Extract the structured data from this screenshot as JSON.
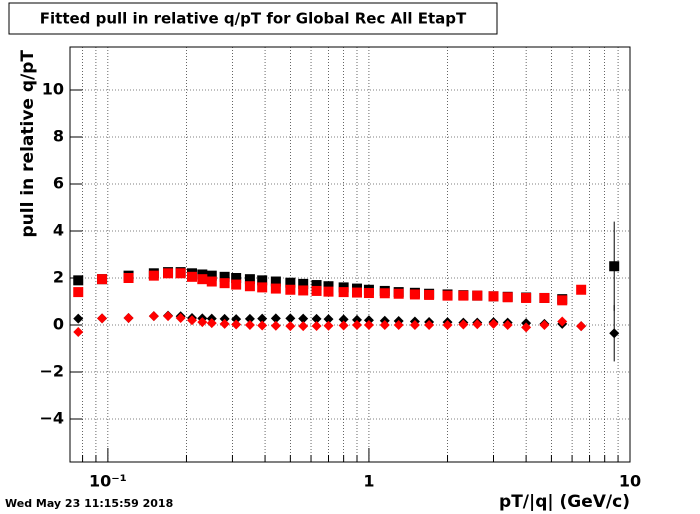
{
  "chart_data": {
    "type": "scatter",
    "title": "Fitted pull in relative q/pT for Global Rec All EtapT",
    "x_label": "pT/|q| (GeV/c)",
    "y_label": "pull in relative q/pT",
    "timestamp": "Wed May 23 11:15:59 2018",
    "xscale": "log",
    "grid": true,
    "xlim": [
      0.0716,
      10
    ],
    "ylim": [
      -5.83,
      11.83
    ],
    "xticks": [
      {
        "value": 0.1,
        "label": "10⁻¹"
      },
      1,
      10
    ],
    "xminorticks": [
      0.08,
      0.09,
      0.2,
      0.3,
      0.4,
      0.5,
      0.6,
      0.7,
      0.8,
      0.9,
      2,
      3,
      4,
      5,
      6,
      7,
      8,
      9
    ],
    "yticks": [
      {
        "value": -4,
        "label": "−4"
      },
      {
        "value": -2,
        "label": "−2"
      },
      0,
      2,
      4,
      6,
      8,
      10
    ],
    "x": [
      0.077,
      0.095,
      0.12,
      0.15,
      0.17,
      0.19,
      0.21,
      0.23,
      0.25,
      0.28,
      0.31,
      0.35,
      0.39,
      0.44,
      0.5,
      0.56,
      0.63,
      0.7,
      0.8,
      0.9,
      1.0,
      1.15,
      1.3,
      1.5,
      1.7,
      2.0,
      2.3,
      2.6,
      3.0,
      3.4,
      4.0,
      4.7,
      5.5,
      6.5,
      8.7
    ],
    "series": [
      {
        "color": "#000000",
        "marker": "square",
        "values": [
          1.9,
          1.95,
          2.1,
          2.2,
          2.25,
          2.25,
          2.2,
          2.15,
          2.1,
          2.05,
          2.0,
          1.95,
          1.9,
          1.85,
          1.8,
          1.75,
          1.7,
          1.65,
          1.6,
          1.55,
          1.5,
          1.45,
          1.4,
          1.37,
          1.33,
          1.3,
          1.27,
          1.25,
          1.22,
          1.2,
          1.17,
          1.15,
          1.1,
          null,
          2.5
        ],
        "errors": [
          null,
          null,
          null,
          null,
          null,
          null,
          null,
          null,
          null,
          null,
          null,
          null,
          null,
          null,
          null,
          null,
          null,
          null,
          null,
          null,
          null,
          null,
          null,
          null,
          null,
          null,
          null,
          null,
          null,
          null,
          null,
          null,
          null,
          null,
          1.9
        ]
      },
      {
        "color": "#ff0000",
        "marker": "square",
        "values": [
          1.4,
          1.95,
          2.0,
          2.1,
          2.2,
          2.2,
          2.05,
          1.95,
          1.85,
          1.78,
          1.72,
          1.65,
          1.6,
          1.55,
          1.5,
          1.47,
          1.45,
          1.42,
          1.4,
          1.38,
          1.36,
          1.35,
          1.33,
          1.3,
          1.28,
          1.25,
          1.25,
          1.25,
          1.22,
          1.18,
          1.15,
          1.15,
          1.05,
          1.5,
          null
        ]
      },
      {
        "color": "#000000",
        "marker": "diamond",
        "values": [
          0.27,
          0.28,
          0.3,
          0.38,
          0.4,
          0.37,
          0.3,
          0.28,
          0.27,
          0.26,
          0.25,
          0.26,
          0.27,
          0.28,
          0.28,
          0.27,
          0.26,
          0.25,
          0.24,
          0.22,
          0.2,
          0.18,
          0.17,
          0.15,
          0.13,
          0.12,
          0.1,
          0.1,
          0.12,
          0.1,
          0.08,
          0.05,
          0.05,
          -0.05,
          -0.35
        ],
        "errors": [
          null,
          null,
          null,
          null,
          null,
          null,
          null,
          null,
          null,
          null,
          null,
          null,
          null,
          null,
          null,
          null,
          null,
          null,
          null,
          null,
          null,
          null,
          null,
          null,
          null,
          null,
          null,
          null,
          null,
          null,
          null,
          null,
          null,
          null,
          1.2
        ]
      },
      {
        "color": "#ff0000",
        "marker": "diamond",
        "values": [
          -0.3,
          0.28,
          0.3,
          0.38,
          0.38,
          0.3,
          0.2,
          0.12,
          0.08,
          0.05,
          0.02,
          0.0,
          -0.02,
          -0.03,
          -0.05,
          -0.05,
          -0.04,
          -0.03,
          -0.02,
          0.0,
          0.0,
          0.0,
          0.0,
          0.0,
          0.0,
          0.0,
          0.02,
          0.03,
          0.05,
          0.0,
          -0.1,
          0.0,
          0.15,
          -0.05,
          null
        ]
      }
    ]
  }
}
